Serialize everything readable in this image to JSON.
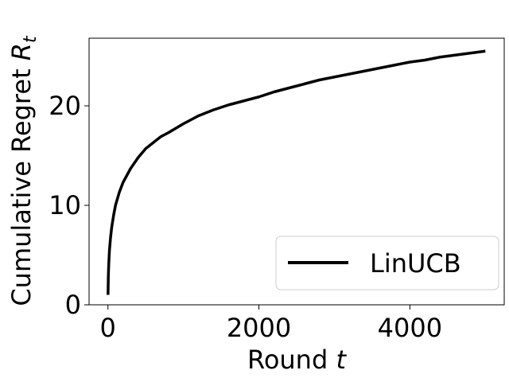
{
  "chart_data": {
    "type": "line",
    "xlabel": {
      "text": "Round ",
      "var": "t"
    },
    "ylabel": {
      "text": "Cumulative Regret ",
      "var": "R",
      "sub": "t"
    },
    "xlim": [
      -250,
      5250
    ],
    "ylim": [
      0,
      26.8
    ],
    "xticks": [
      0,
      2000,
      4000
    ],
    "yticks": [
      0,
      10,
      20
    ],
    "grid": false,
    "legend_position": "lower-right",
    "series": [
      {
        "name": "LinUCB",
        "color": "#000000",
        "x": [
          1,
          5,
          10,
          20,
          35,
          50,
          75,
          100,
          150,
          200,
          250,
          300,
          400,
          500,
          600,
          700,
          800,
          1000,
          1200,
          1400,
          1600,
          1800,
          2000,
          2200,
          2400,
          2600,
          2800,
          3000,
          3200,
          3400,
          3600,
          3800,
          4000,
          4200,
          4400,
          4600,
          4800,
          5000
        ],
        "y": [
          1.0,
          2.8,
          4.0,
          5.5,
          6.8,
          7.8,
          9.0,
          10.0,
          11.3,
          12.3,
          13.0,
          13.7,
          14.8,
          15.7,
          16.3,
          16.9,
          17.3,
          18.2,
          19.0,
          19.6,
          20.1,
          20.5,
          20.9,
          21.4,
          21.8,
          22.2,
          22.6,
          22.9,
          23.2,
          23.5,
          23.8,
          24.1,
          24.4,
          24.6,
          24.9,
          25.1,
          25.3,
          25.5
        ]
      }
    ]
  }
}
